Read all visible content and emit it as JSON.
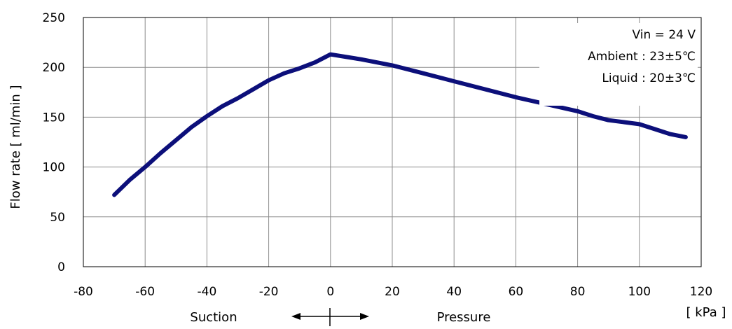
{
  "chart_data": {
    "type": "line",
    "title": "",
    "xlabel": "",
    "ylabel": "Flow rate [ ml/min ]",
    "x_unit_label": "[ kPa ]",
    "xlim": [
      -80,
      120
    ],
    "ylim": [
      0,
      250
    ],
    "x_ticks": [
      -80,
      -60,
      -40,
      -20,
      0,
      20,
      40,
      60,
      80,
      100,
      120
    ],
    "y_ticks": [
      0,
      50,
      100,
      150,
      200,
      250
    ],
    "grid": true,
    "legend": "none",
    "series_color": "#0c0f7a",
    "series": [
      {
        "x": [
          -70,
          -65,
          -60,
          -55,
          -50,
          -45,
          -40,
          -35,
          -30,
          -25,
          -20,
          -15,
          -10,
          -5,
          0,
          10,
          20,
          30,
          40,
          50,
          60,
          70,
          80,
          85,
          90,
          95,
          100,
          105,
          110,
          115
        ],
        "y": [
          72,
          87,
          100,
          114,
          127,
          140,
          151,
          161,
          169,
          178,
          187,
          194,
          199,
          205,
          213,
          208,
          202,
          194,
          186,
          178,
          170,
          163,
          156,
          151,
          147,
          145,
          143,
          138,
          133,
          130
        ]
      }
    ],
    "direction_labels": {
      "left": "Suction",
      "right": "Pressure"
    },
    "annotations": [
      "Vin = 24 V",
      "Ambient : 23±5℃",
      "Liquid : 20±3℃"
    ]
  }
}
